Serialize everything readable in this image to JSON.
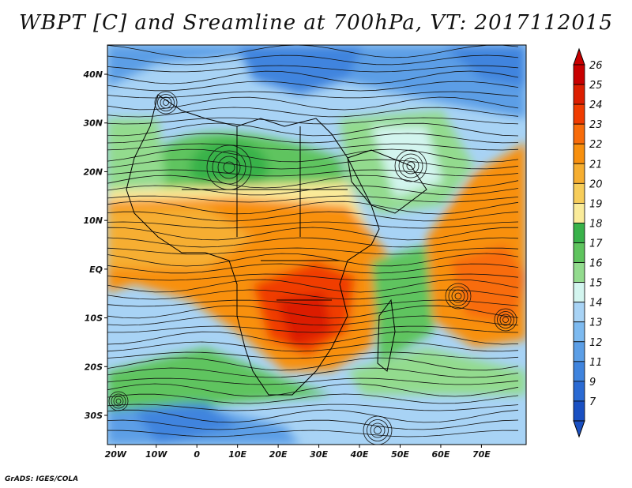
{
  "title": "WBPT [C] and Sreamline at 700hPa, VT: 2017112015",
  "credit": "GrADS: IGES/COLA",
  "lat_labels": [
    "40N",
    "30N",
    "20N",
    "10N",
    "EQ",
    "10S",
    "20S",
    "30S"
  ],
  "lon_labels": [
    "20W",
    "10W",
    "0",
    "10E",
    "20E",
    "30E",
    "40E",
    "50E",
    "60E",
    "70E"
  ],
  "colorbar": {
    "levels": [
      "26",
      "25",
      "24",
      "23",
      "22",
      "21",
      "20",
      "19",
      "18",
      "17",
      "16",
      "15",
      "14",
      "13",
      "12",
      "11",
      "9",
      "7"
    ],
    "colors": [
      "#c80000",
      "#dc1e00",
      "#f03c00",
      "#f86c0a",
      "#f8900e",
      "#f6ae30",
      "#f7cd5a",
      "#faeb9a",
      "#39b24a",
      "#5fc45e",
      "#93db8e",
      "#d3f5ef",
      "#a8d3f5",
      "#7dbaf0",
      "#5b9ee6",
      "#3f84de",
      "#2a6ad3",
      "#1a50c2"
    ]
  },
  "map": {
    "lon_range": [
      -22,
      81
    ],
    "lat_range": [
      -36,
      46
    ],
    "colors": {
      "ocean_blue": "#5b9ee6",
      "cool": "#a8d3f5",
      "green": "#5fc45e",
      "pale": "#faeb9a",
      "orange": "#f8900e",
      "hot": "#f03c00"
    }
  }
}
